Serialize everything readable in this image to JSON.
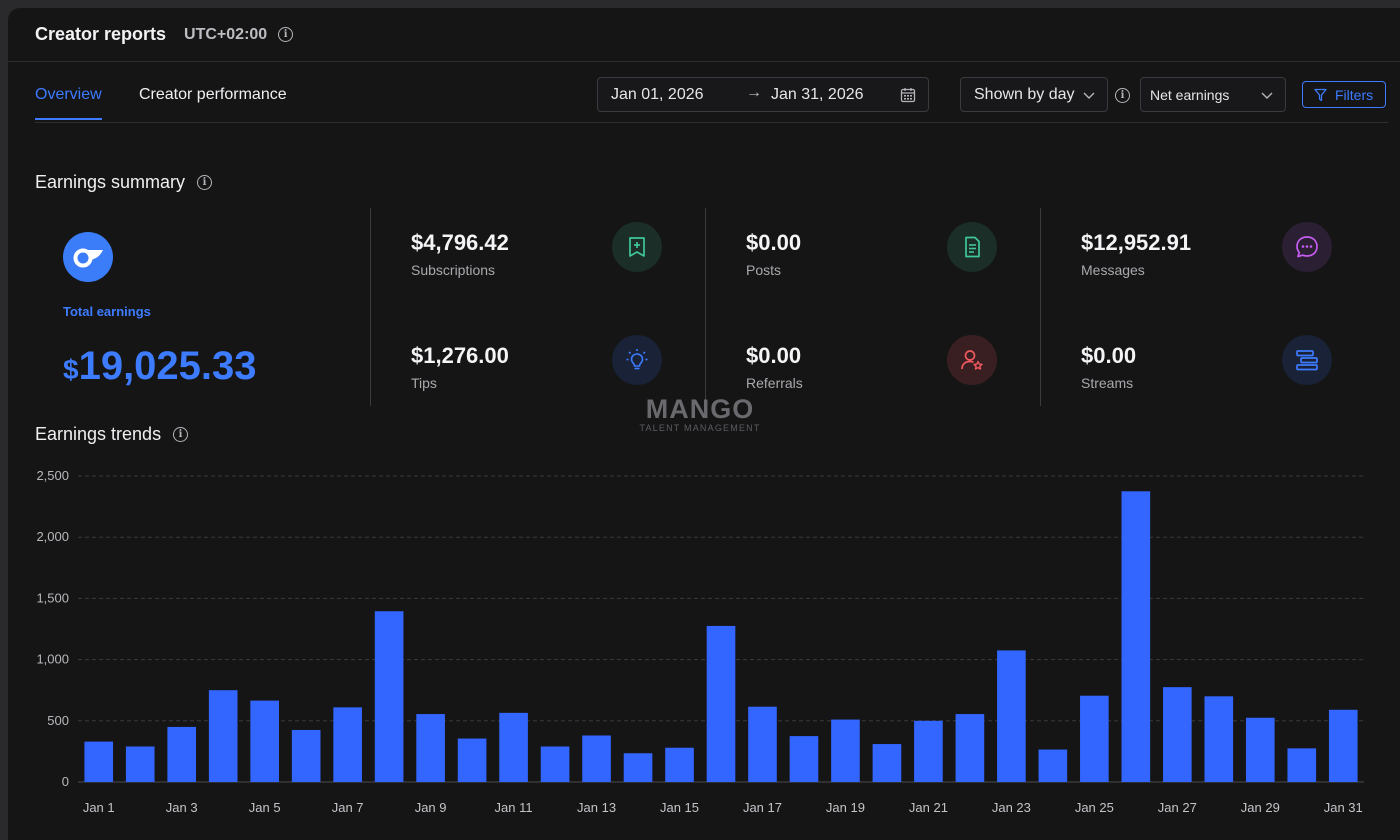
{
  "header": {
    "title": "Creator reports",
    "timezone": "UTC+02:00"
  },
  "tabs": [
    {
      "label": "Overview",
      "active": true
    },
    {
      "label": "Creator performance",
      "active": false
    }
  ],
  "filters": {
    "date_start": "Jan 01, 2026",
    "date_end": "Jan 31, 2026",
    "granularity": "Shown by day",
    "metric": "Net earnings",
    "filters_label": "Filters"
  },
  "summary": {
    "title": "Earnings summary",
    "total_label": "Total earnings",
    "total_currency": "$",
    "total_value": "19,025.33",
    "metrics": [
      {
        "value": "$4,796.42",
        "label": "Subscriptions",
        "icon": "subscriptions-icon",
        "color": "#3fc79a"
      },
      {
        "value": "$0.00",
        "label": "Posts",
        "icon": "posts-icon",
        "color": "#3fc79a"
      },
      {
        "value": "$12,952.91",
        "label": "Messages",
        "icon": "messages-icon",
        "color": "#c65cf0"
      },
      {
        "value": "$1,276.00",
        "label": "Tips",
        "icon": "tips-icon",
        "color": "#3d7bff"
      },
      {
        "value": "$0.00",
        "label": "Referrals",
        "icon": "referrals-icon",
        "color": "#f0595f"
      },
      {
        "value": "$0.00",
        "label": "Streams",
        "icon": "streams-icon",
        "color": "#3d7bff"
      }
    ]
  },
  "watermark": {
    "main": "MANGO",
    "sub": "TALENT MANAGEMENT"
  },
  "trends": {
    "title": "Earnings trends"
  },
  "colors": {
    "accent": "#3d7bff",
    "bar": "#3366ff",
    "background": "#151516"
  },
  "chart_data": {
    "type": "bar",
    "title": "Earnings trends",
    "xlabel": "",
    "ylabel": "",
    "ylim": [
      0,
      2500
    ],
    "yticks": [
      "0",
      "500",
      "1,000",
      "1,500",
      "2,000",
      "2,500"
    ],
    "grid": true,
    "categories": [
      "Jan 1",
      "Jan 2",
      "Jan 3",
      "Jan 4",
      "Jan 5",
      "Jan 6",
      "Jan 7",
      "Jan 8",
      "Jan 9",
      "Jan 10",
      "Jan 11",
      "Jan 12",
      "Jan 13",
      "Jan 14",
      "Jan 15",
      "Jan 16",
      "Jan 17",
      "Jan 18",
      "Jan 19",
      "Jan 20",
      "Jan 21",
      "Jan 22",
      "Jan 23",
      "Jan 24",
      "Jan 25",
      "Jan 26",
      "Jan 27",
      "Jan 28",
      "Jan 29",
      "Jan 30",
      "Jan 31"
    ],
    "xtick_labels": [
      "Jan 1",
      "Jan 3",
      "Jan 5",
      "Jan 7",
      "Jan 9",
      "Jan 11",
      "Jan 13",
      "Jan 15",
      "Jan 17",
      "Jan 19",
      "Jan 21",
      "Jan 23",
      "Jan 25",
      "Jan 27",
      "Jan 29",
      "Jan 31"
    ],
    "values": [
      330,
      290,
      450,
      750,
      665,
      425,
      610,
      1395,
      555,
      355,
      565,
      290,
      380,
      235,
      280,
      1275,
      615,
      375,
      510,
      310,
      500,
      555,
      1075,
      265,
      705,
      2375,
      775,
      700,
      525,
      275,
      590
    ]
  }
}
